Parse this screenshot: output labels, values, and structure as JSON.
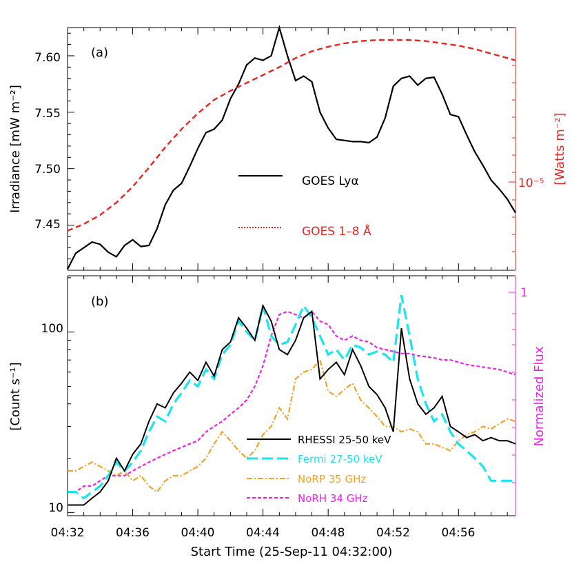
{
  "chart_data": [
    {
      "panel": "(a)",
      "type": "line",
      "ylabel": "Irradiance [mW m⁻²]",
      "y2label": "[Watts m⁻²]",
      "xlim": [
        0,
        27.5
      ],
      "ylim": [
        7.41,
        7.625
      ],
      "y2_tick_label": "10⁻⁵",
      "y_ticks": [
        "7.45",
        "7.50",
        "7.55",
        "7.60"
      ],
      "legend": [
        {
          "name": "GOES Lyα",
          "color": "#000000"
        },
        {
          "name": "GOES 1–8 Å",
          "color": "#e8241c"
        }
      ],
      "series": [
        {
          "name": "GOES Lyα",
          "x": [
            0,
            0.5,
            1,
            1.5,
            2,
            2.5,
            3,
            3.5,
            4,
            4.5,
            5,
            5.5,
            6,
            6.5,
            7,
            7.5,
            8,
            8.5,
            9,
            9.5,
            10,
            10.5,
            11,
            11.5,
            12,
            12.5,
            13,
            13.5,
            14,
            14.5,
            15,
            15.5,
            16,
            16.5,
            17,
            17.5,
            18,
            18.5,
            19,
            19.5,
            20,
            20.5,
            21,
            21.5,
            22,
            22.5,
            23,
            23.5,
            24,
            24.5,
            25,
            25.5,
            26,
            26.5,
            27,
            27.5
          ],
          "values": [
            7.411,
            7.425,
            7.43,
            7.435,
            7.433,
            7.426,
            7.422,
            7.432,
            7.437,
            7.431,
            7.432,
            7.447,
            7.468,
            7.481,
            7.487,
            7.502,
            7.518,
            7.532,
            7.535,
            7.543,
            7.562,
            7.575,
            7.592,
            7.598,
            7.596,
            7.6,
            7.625,
            7.6,
            7.578,
            7.582,
            7.577,
            7.55,
            7.536,
            7.526,
            7.525,
            7.524,
            7.524,
            7.523,
            7.528,
            7.545,
            7.573,
            7.58,
            7.582,
            7.574,
            7.58,
            7.581,
            7.566,
            7.548,
            7.546,
            7.53,
            7.515,
            7.503,
            7.49,
            7.482,
            7.473,
            7.461
          ]
        },
        {
          "name": "GOES 1–8 Å",
          "x": [
            0,
            1,
            2,
            3,
            4,
            5,
            6,
            7,
            8,
            9,
            10,
            11,
            12,
            13,
            14,
            15,
            16,
            17,
            18,
            19,
            20,
            21,
            22,
            23,
            24,
            25,
            26,
            27,
            27.5
          ],
          "values": [
            7.445,
            7.451,
            7.459,
            7.47,
            7.484,
            7.501,
            7.519,
            7.535,
            7.549,
            7.561,
            7.569,
            7.576,
            7.583,
            7.59,
            7.598,
            7.604,
            7.608,
            7.611,
            7.613,
            7.614,
            7.614,
            7.614,
            7.613,
            7.611,
            7.609,
            7.606,
            7.602,
            7.598,
            7.596
          ]
        }
      ]
    },
    {
      "panel": "(b)",
      "type": "line",
      "ylabel": "[Count s⁻¹]",
      "y2label": "Normalized Flux",
      "xlabel": "Start Time (25-Sep-11 04:32:00)",
      "xlim": [
        0,
        27.5
      ],
      "ylim_log": [
        9.6,
        205
      ],
      "y_ticks": [
        "10",
        "100"
      ],
      "y2_tick_label": "1",
      "x_ticks": [
        "04:32",
        "04:36",
        "04:40",
        "04:44",
        "04:48",
        "04:52",
        "04:56"
      ],
      "legend": [
        {
          "name": "RHESSI 25-50 keV",
          "color": "#000000"
        },
        {
          "name": "Fermi 27-50 keV",
          "color": "#19e5ef"
        },
        {
          "name": "NoRP 35 GHz",
          "color": "#f4a12a"
        },
        {
          "name": "NoRH 34 GHz",
          "color": "#ee22e8"
        }
      ],
      "series": [
        {
          "name": "RHESSI 25-50 keV",
          "x": [
            0,
            0.5,
            1,
            1.5,
            2,
            2.5,
            3,
            3.5,
            4,
            4.5,
            5,
            5.5,
            6,
            6.5,
            7,
            7.5,
            8,
            8.5,
            9,
            9.5,
            10,
            10.5,
            11,
            11.5,
            12,
            12.5,
            13,
            13.5,
            14,
            14.5,
            15,
            15.5,
            16,
            16.5,
            17,
            17.5,
            18,
            18.5,
            19,
            19.5,
            20,
            20.5,
            21,
            21.5,
            22,
            22.5,
            23,
            23.5,
            24,
            24.5,
            25,
            25.5,
            26,
            26.5,
            27,
            27.5
          ],
          "values": [
            11,
            11,
            11,
            12,
            13,
            15,
            20,
            17,
            21,
            24,
            32,
            40,
            38,
            46,
            52,
            60,
            54,
            68,
            57,
            80,
            88,
            120,
            105,
            90,
            140,
            115,
            80,
            75,
            90,
            120,
            130,
            55,
            62,
            68,
            58,
            80,
            65,
            50,
            45,
            38,
            28,
            105,
            55,
            40,
            35,
            38,
            44,
            30,
            28,
            26,
            27,
            25,
            26,
            25,
            25,
            24
          ]
        },
        {
          "name": "Fermi 27-50 keV",
          "x": [
            0,
            0.5,
            1,
            1.5,
            2,
            2.5,
            3,
            3.5,
            4,
            4.5,
            5,
            5.5,
            6,
            6.5,
            7,
            7.5,
            8,
            8.5,
            9,
            9.5,
            10,
            10.5,
            11,
            11.5,
            12,
            12.5,
            13,
            13.5,
            14,
            14.5,
            15,
            15.5,
            16,
            16.5,
            17,
            17.5,
            18,
            18.5,
            19,
            19.5,
            20,
            20.5,
            21,
            21.5,
            22,
            22.5,
            23,
            23.5,
            24,
            24.5,
            25,
            25.5,
            26,
            26.5,
            27,
            27.5
          ],
          "values": [
            13,
            13,
            12,
            13,
            14,
            16,
            19,
            17,
            19,
            22,
            28,
            34,
            32,
            40,
            46,
            54,
            50,
            62,
            55,
            75,
            85,
            115,
            100,
            90,
            140,
            95,
            85,
            88,
            110,
            140,
            120,
            95,
            75,
            80,
            70,
            85,
            82,
            75,
            78,
            75,
            68,
            160,
            95,
            55,
            40,
            32,
            35,
            28,
            24,
            22,
            20,
            18,
            15,
            15,
            15,
            15
          ]
        },
        {
          "name": "NoRP 35 GHz",
          "x": [
            0,
            0.5,
            1,
            1.5,
            2,
            2.5,
            3,
            3.5,
            4,
            4.5,
            5,
            5.5,
            6,
            6.5,
            7,
            7.5,
            8,
            8.5,
            9,
            9.5,
            10,
            10.5,
            11,
            11.5,
            12,
            12.5,
            13,
            13.5,
            14,
            14.5,
            15,
            15.5,
            16,
            16.5,
            17,
            17.5,
            18,
            18.5,
            19,
            19.5,
            20,
            20.5,
            21,
            21.5,
            22,
            22.5,
            23,
            23.5,
            24,
            24.5,
            25,
            25.5,
            26,
            26.5,
            27,
            27.5
          ],
          "values": [
            17,
            17,
            18,
            19,
            18,
            17,
            16,
            17,
            15,
            16,
            14,
            13,
            15,
            16,
            16,
            17,
            18,
            20,
            24,
            28,
            25,
            22,
            20,
            22,
            27,
            30,
            38,
            33,
            55,
            60,
            62,
            70,
            47,
            44,
            48,
            52,
            42,
            38,
            34,
            30,
            30,
            28,
            29,
            28,
            24,
            24,
            23,
            22,
            25,
            27,
            28,
            30,
            29,
            31,
            33,
            32
          ]
        },
        {
          "name": "NoRH 34 GHz",
          "x": [
            0,
            0.5,
            1,
            1.5,
            2,
            2.5,
            3,
            3.5,
            4,
            4.5,
            5,
            5.5,
            6,
            6.5,
            7,
            7.5,
            8,
            8.5,
            9,
            9.5,
            10,
            10.5,
            11,
            11.5,
            12,
            12.5,
            13,
            13.5,
            14,
            14.5,
            15,
            15.5,
            16,
            16.5,
            17,
            17.5,
            18,
            18.5,
            19,
            19.5,
            20,
            20.5,
            21,
            21.5,
            22,
            22.5,
            23,
            23.5,
            24,
            24.5,
            25,
            25.5,
            26,
            26.5,
            27,
            27.5
          ],
          "values": [
            13,
            13,
            14,
            14,
            15,
            16,
            16,
            16,
            17,
            18,
            19,
            20,
            21,
            22,
            23,
            24,
            25,
            28,
            30,
            32,
            35,
            38,
            42,
            50,
            65,
            95,
            125,
            130,
            125,
            120,
            130,
            115,
            110,
            95,
            90,
            95,
            90,
            88,
            82,
            80,
            78,
            76,
            76,
            74,
            73,
            72,
            70,
            70,
            68,
            66,
            65,
            64,
            63,
            62,
            60,
            58
          ]
        }
      ]
    }
  ],
  "labels": {
    "panel_a": "(a)",
    "panel_b": "(b)"
  }
}
